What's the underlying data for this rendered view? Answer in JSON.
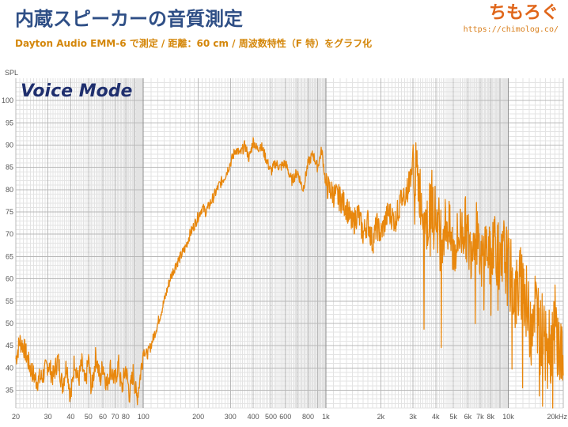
{
  "header": {
    "title": "内蔵スピーカーの音質測定",
    "subtitle": "Dayton Audio EMM-6 で測定 / 距離：60 cm / 周波数特性（F 特）をグラフ化",
    "brand_logo": "ちもろぐ",
    "brand_url": "https://chimolog.co/"
  },
  "colors": {
    "curve": "#e8870d",
    "title": "#2f4f86",
    "subtitle": "#d4870b",
    "mode_label": "#1f2f6e",
    "grid_major": "#b8b8b8",
    "grid_minor": "#e3e3e3"
  },
  "chart_data": {
    "type": "line",
    "title": "Voice Mode",
    "ylabel": "SPL",
    "x_scale": "log",
    "xlim": [
      20,
      20000
    ],
    "ylim": [
      31,
      105
    ],
    "y_ticks": [
      35,
      40,
      45,
      50,
      55,
      60,
      65,
      70,
      75,
      80,
      85,
      90,
      95,
      100
    ],
    "x_tick_labels": [
      {
        "value": 20,
        "label": "20"
      },
      {
        "value": 30,
        "label": "30"
      },
      {
        "value": 40,
        "label": "40"
      },
      {
        "value": 50,
        "label": "50"
      },
      {
        "value": 60,
        "label": "60"
      },
      {
        "value": 70,
        "label": "70"
      },
      {
        "value": 80,
        "label": "80"
      },
      {
        "value": 100,
        "label": "100"
      },
      {
        "value": 200,
        "label": "200"
      },
      {
        "value": 300,
        "label": "300"
      },
      {
        "value": 400,
        "label": "400"
      },
      {
        "value": 500,
        "label": "500"
      },
      {
        "value": 600,
        "label": "600"
      },
      {
        "value": 800,
        "label": "800"
      },
      {
        "value": 1000,
        "label": "1k"
      },
      {
        "value": 2000,
        "label": "2k"
      },
      {
        "value": 3000,
        "label": "3k"
      },
      {
        "value": 4000,
        "label": "4k"
      },
      {
        "value": 5000,
        "label": "5k"
      },
      {
        "value": 6000,
        "label": "6k"
      },
      {
        "value": 7000,
        "label": "7k"
      },
      {
        "value": 8000,
        "label": "8k"
      },
      {
        "value": 10000,
        "label": "10k"
      },
      {
        "value": 20000,
        "label": "20kHz"
      }
    ],
    "grid": true,
    "series": [
      {
        "x": [
          20,
          21,
          22,
          24,
          26,
          28,
          30,
          32,
          34,
          36,
          38,
          40,
          42,
          44,
          46,
          48,
          50,
          52,
          55,
          58,
          60,
          63,
          66,
          70,
          73,
          76,
          80,
          84,
          88,
          92,
          96,
          100,
          105,
          110,
          120,
          130,
          140,
          150,
          160,
          170,
          180,
          190,
          200,
          210,
          220,
          240,
          260,
          280,
          300,
          320,
          340,
          360,
          380,
          400,
          420,
          440,
          460,
          480,
          500,
          530,
          560,
          600,
          650,
          700,
          750,
          800,
          850,
          900,
          950,
          1000,
          1050,
          1100,
          1200,
          1300,
          1400,
          1500,
          1600,
          1700,
          1800,
          1900,
          2000,
          2200,
          2400,
          2600,
          2800,
          3000,
          3200,
          3400,
          3600,
          3800,
          4000,
          4300,
          4600,
          5000,
          5400,
          5800,
          6200,
          6600,
          7000,
          7500,
          8000,
          8500,
          9000,
          9500,
          10000,
          11000,
          12000,
          13000,
          14000,
          15000,
          16000,
          17000,
          18000,
          19000,
          20000
        ],
        "y": [
          42,
          46,
          45,
          40,
          37,
          38,
          41,
          38,
          42,
          36,
          41,
          33,
          42,
          37,
          41,
          36,
          42,
          35,
          43,
          37,
          41,
          36,
          40,
          37,
          41,
          35,
          40,
          34,
          39,
          33,
          38,
          44,
          43,
          45,
          50,
          55,
          60,
          63,
          65,
          67,
          70,
          72,
          74,
          76,
          75,
          78,
          81,
          83,
          86,
          89,
          88,
          90,
          87,
          91,
          89,
          90,
          88,
          86,
          84,
          86,
          85,
          86,
          82,
          84,
          80,
          86,
          88,
          85,
          89,
          81,
          80,
          79,
          78,
          76,
          72,
          75,
          70,
          73,
          68,
          72,
          70,
          75,
          73,
          78,
          80,
          86,
          82,
          76,
          72,
          78,
          74,
          70,
          73,
          66,
          70,
          72,
          66,
          73,
          62,
          68,
          64,
          70,
          60,
          66,
          62,
          56,
          60,
          50,
          55,
          47,
          52,
          45,
          50,
          44,
          42
        ]
      }
    ]
  }
}
